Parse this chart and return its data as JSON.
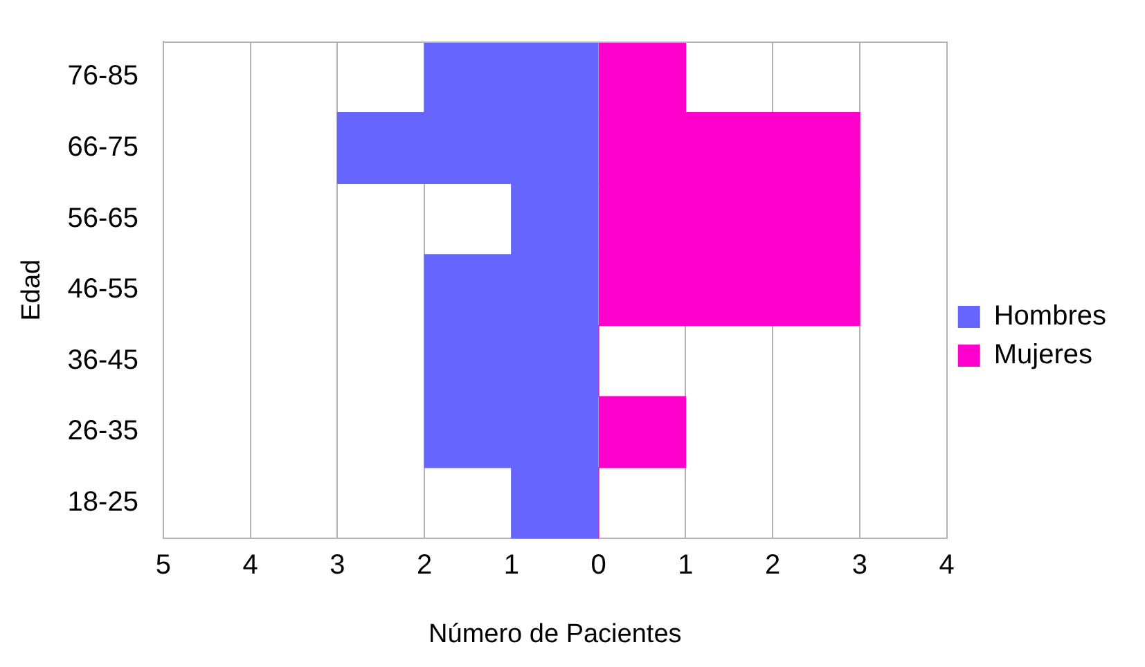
{
  "chart_data": {
    "type": "bar",
    "orientation": "horizontal",
    "stacked": true,
    "xlabel": "Número de Pacientes",
    "ylabel": "Edad",
    "categories": [
      "76-85",
      "66-75",
      "56-65",
      "46-55",
      "36-45",
      "26-35",
      "18-25"
    ],
    "series": [
      {
        "name": "Hombres",
        "color": "#6666ff",
        "values": [
          -2,
          -3,
          -1,
          -2,
          -2,
          -2,
          -1
        ]
      },
      {
        "name": "Mujeres",
        "color": "#ff00cc",
        "values": [
          1,
          3,
          3,
          3,
          0,
          1,
          0
        ]
      }
    ],
    "xlim": [
      -5,
      4
    ],
    "xticks": [
      {
        "value": -5,
        "label": "5"
      },
      {
        "value": -4,
        "label": "4"
      },
      {
        "value": -3,
        "label": "3"
      },
      {
        "value": -2,
        "label": "2"
      },
      {
        "value": -1,
        "label": "1"
      },
      0,
      1,
      2,
      3,
      4
    ],
    "grid": "x",
    "legend": "right"
  }
}
